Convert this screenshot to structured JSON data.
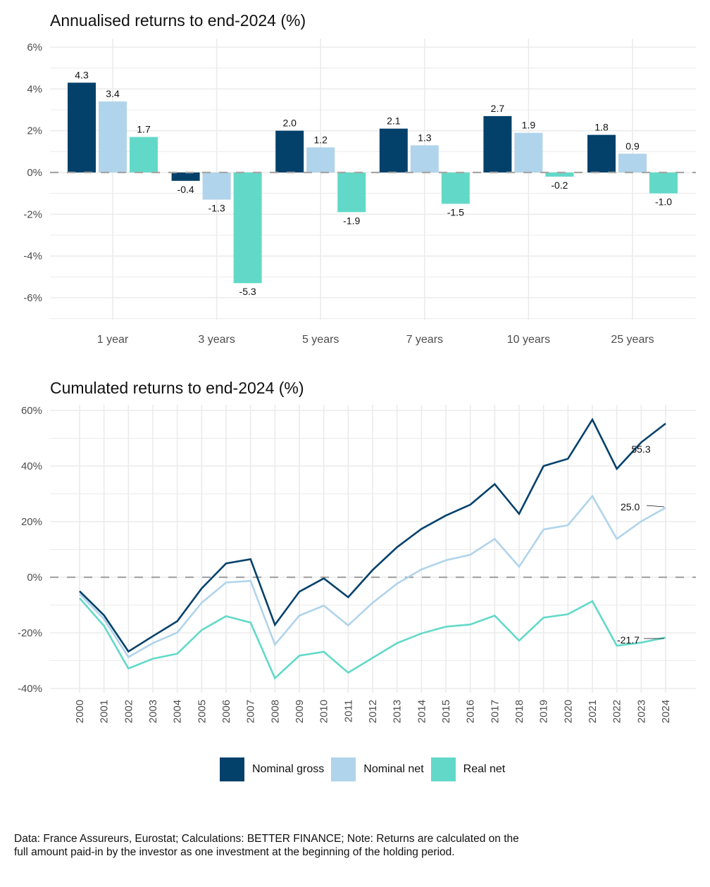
{
  "colors": {
    "nominal_gross": "#03416B",
    "nominal_net": "#B0D4EB",
    "real_net": "#62D9C8",
    "grid": "#EBEBEB",
    "zero_line": "#A6A6A6",
    "axis_text": "#4D4D4D"
  },
  "legend": {
    "placement": "bottom",
    "items": [
      {
        "name": "Nominal gross",
        "key": "nominal_gross"
      },
      {
        "name": "Nominal net",
        "key": "nominal_net"
      },
      {
        "name": "Real net",
        "key": "real_net"
      }
    ]
  },
  "caption": {
    "line1": "Data: France Assureurs, Eurostat; Calculations: BETTER FINANCE; Note: Returns are calculated on the",
    "line2": "full amount paid-in by the investor as one investment at the beginning of the holding period."
  },
  "chart_data": [
    {
      "type": "bar",
      "title": "Annualised returns to end-2024 (%)",
      "xlabel": "",
      "ylabel": "",
      "categories": [
        "1 year",
        "3 years",
        "5 years",
        "7 years",
        "10 years",
        "25 years"
      ],
      "series": [
        {
          "name": "Nominal gross",
          "key": "nominal_gross",
          "values": [
            4.3,
            -0.4,
            2.0,
            2.1,
            2.7,
            1.8
          ]
        },
        {
          "name": "Nominal net",
          "key": "nominal_net",
          "values": [
            3.4,
            -1.3,
            1.2,
            1.3,
            1.9,
            0.9
          ]
        },
        {
          "name": "Real net",
          "key": "real_net",
          "values": [
            1.7,
            -5.3,
            -1.9,
            -1.5,
            -0.2,
            -1.0
          ]
        }
      ],
      "data_labels": true,
      "ylim": [
        -7,
        6
      ],
      "yticks": [
        6,
        4,
        2,
        0,
        -2,
        -4,
        -6
      ],
      "ytick_labels": [
        "6%",
        "4%",
        "2%",
        "0%",
        "-2%",
        "-4%",
        "-6%"
      ],
      "zero_line": "dashed",
      "grid": true
    },
    {
      "type": "line",
      "title": "Cumulated returns to end-2024 (%)",
      "xlabel": "",
      "ylabel": "",
      "x": [
        "2000",
        "2001",
        "2002",
        "2003",
        "2004",
        "2005",
        "2006",
        "2007",
        "2008",
        "2009",
        "2010",
        "2011",
        "2012",
        "2013",
        "2014",
        "2015",
        "2016",
        "2017",
        "2018",
        "2019",
        "2020",
        "2021",
        "2022",
        "2023",
        "2024"
      ],
      "series": [
        {
          "name": "Nominal gross",
          "key": "nominal_gross",
          "values": [
            -5.0,
            -13.7,
            -26.7,
            -21.2,
            -15.8,
            -4.0,
            5.0,
            6.5,
            -17.1,
            -5.2,
            -0.4,
            -7.2,
            2.6,
            10.8,
            17.4,
            22.2,
            26.1,
            33.5,
            22.8,
            40.0,
            42.6,
            56.7,
            39.0,
            48.5,
            55.3
          ],
          "end_label": "55.3"
        },
        {
          "name": "Nominal net",
          "key": "nominal_net",
          "values": [
            -6.0,
            -15.0,
            -28.7,
            -23.7,
            -19.9,
            -9.2,
            -1.9,
            -1.3,
            -24.2,
            -13.8,
            -10.2,
            -17.3,
            -9.2,
            -2.3,
            2.8,
            6.1,
            8.1,
            13.8,
            3.8,
            17.2,
            18.7,
            29.2,
            13.8,
            20.1,
            25.0
          ],
          "end_label": "25.0"
        },
        {
          "name": "Real net",
          "key": "real_net",
          "values": [
            -7.5,
            -17.5,
            -32.8,
            -29.3,
            -27.5,
            -19.0,
            -14.0,
            -16.3,
            -36.3,
            -28.2,
            -26.8,
            -34.3,
            -29.0,
            -23.7,
            -20.2,
            -17.8,
            -17.0,
            -13.8,
            -22.8,
            -14.5,
            -13.3,
            -8.6,
            -24.6,
            -23.5,
            -21.7
          ],
          "end_label": "-21.7"
        }
      ],
      "ylim": [
        -41,
        60
      ],
      "yticks": [
        60,
        40,
        20,
        0,
        -20,
        -40
      ],
      "ytick_labels": [
        "60%",
        "40%",
        "20%",
        "0%",
        "-20%",
        "-40%"
      ],
      "zero_line": "dashed",
      "grid": true
    }
  ]
}
